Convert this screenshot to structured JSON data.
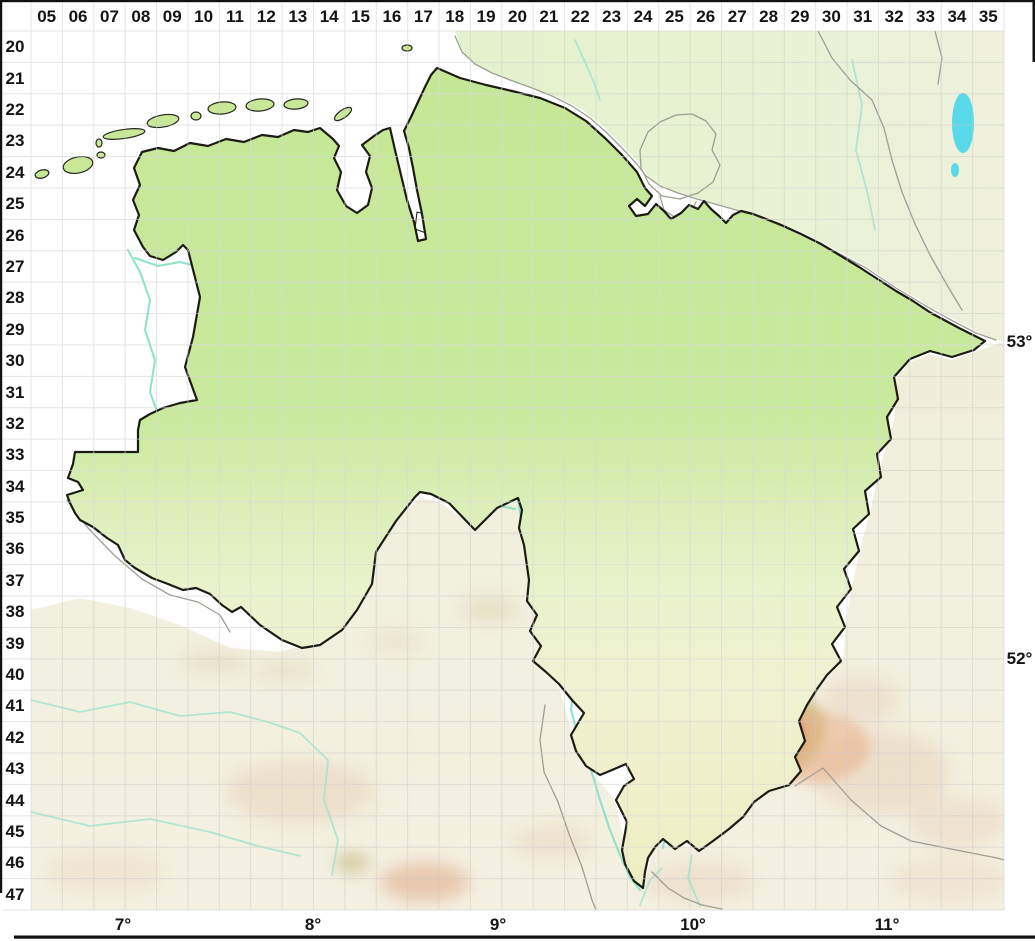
{
  "map_grid": {
    "column_labels": [
      "05",
      "06",
      "07",
      "08",
      "09",
      "10",
      "11",
      "12",
      "13",
      "14",
      "15",
      "16",
      "17",
      "18",
      "19",
      "20",
      "21",
      "22",
      "23",
      "24",
      "25",
      "26",
      "27",
      "28",
      "29",
      "30",
      "31",
      "32",
      "33",
      "34",
      "35"
    ],
    "row_labels": [
      "20",
      "21",
      "22",
      "23",
      "24",
      "25",
      "26",
      "27",
      "28",
      "29",
      "30",
      "31",
      "32",
      "33",
      "34",
      "35",
      "36",
      "37",
      "38",
      "39",
      "40",
      "41",
      "42",
      "43",
      "44",
      "45",
      "46",
      "47"
    ],
    "latitude_labels": [
      "53°",
      "52°"
    ],
    "longitude_labels": [
      "7°",
      "8°",
      "9°",
      "10°",
      "11°"
    ]
  },
  "colors": {
    "state_fill_north": "#c6e795",
    "state_fill_south": "#f0efc9",
    "neighbor_north_fill": "#e7f2d0",
    "neighbor_south_fill": "#f2f0df",
    "sea_fill": "#ffffff",
    "river": "#86e2c6",
    "lake": "#58d8e8",
    "mountain_red": "#e0684a",
    "state_border": "#1c1c14",
    "neighbor_border": "#9e9e94",
    "grid_line": "#c9c9c9",
    "label_text": "#141414"
  }
}
